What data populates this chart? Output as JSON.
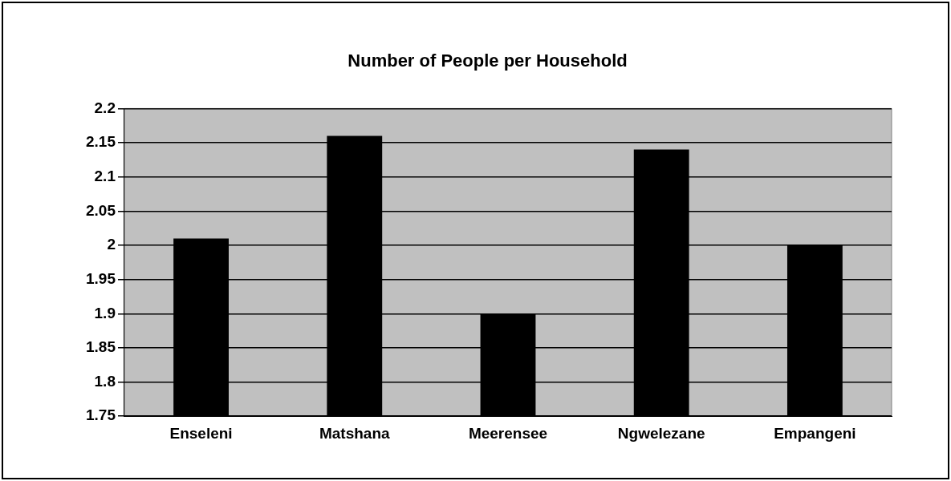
{
  "chart_data": {
    "type": "bar",
    "title": "Number of People per Household",
    "categories": [
      "Enseleni",
      "Matshana",
      "Meerensee",
      "Ngwelezane",
      "Empangeni"
    ],
    "values": [
      2.01,
      2.16,
      1.9,
      2.14,
      2.0
    ],
    "color": "#000000",
    "ylim": [
      1.75,
      2.2
    ],
    "yticks": [
      1.75,
      1.8,
      1.85,
      1.9,
      1.95,
      2,
      2.05,
      2.1,
      2.15,
      2.2
    ],
    "grid": "y"
  }
}
